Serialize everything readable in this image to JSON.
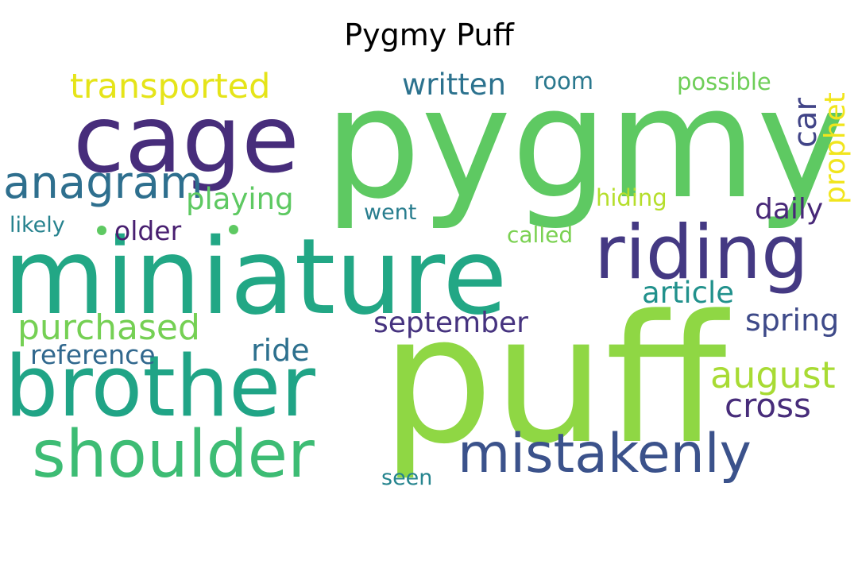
{
  "title": "Pygmy Puff",
  "colors": {
    "purple": "#46327e",
    "darkblue": "#365c8d",
    "steelblue": "#277f8e",
    "teal": "#1fa187",
    "green": "#4ac16d",
    "lightgreen": "#6ccd5a",
    "lime": "#9fda3a",
    "yellow": "#e2e418",
    "indigo": "#3b528b"
  },
  "words": [
    {
      "text": "pygmy",
      "color": "#5ec962"
    },
    {
      "text": "puff",
      "color": "#8fd744"
    },
    {
      "text": "miniature",
      "color": "#22a785"
    },
    {
      "text": "cage",
      "color": "#472d7b"
    },
    {
      "text": "brother",
      "color": "#20a486"
    },
    {
      "text": "riding",
      "color": "#443983"
    },
    {
      "text": "shoulder",
      "color": "#3dbc74"
    },
    {
      "text": "mistakenly",
      "color": "#3b528b"
    },
    {
      "text": "anagram",
      "color": "#2e6f8e"
    },
    {
      "text": "transported",
      "color": "#e5e419"
    },
    {
      "text": "purchased",
      "color": "#75d054"
    },
    {
      "text": "written",
      "color": "#2c728e"
    },
    {
      "text": "room",
      "color": "#2a788e"
    },
    {
      "text": "possible",
      "color": "#6ece58"
    },
    {
      "text": "car",
      "color": "#414487"
    },
    {
      "text": "prophet",
      "color": "#f1e51d"
    },
    {
      "text": "playing",
      "color": "#5ec962"
    },
    {
      "text": "hiding",
      "color": "#b5de2b"
    },
    {
      "text": "daily",
      "color": "#482878"
    },
    {
      "text": "went",
      "color": "#287d8e"
    },
    {
      "text": "likely",
      "color": "#26828e"
    },
    {
      "text": "older",
      "color": "#481f70"
    },
    {
      "text": "called",
      "color": "#7ad151"
    },
    {
      "text": "article",
      "color": "#21918c"
    },
    {
      "text": "september",
      "color": "#46337f"
    },
    {
      "text": "spring",
      "color": "#3e4a89"
    },
    {
      "text": "reference",
      "color": "#31688e"
    },
    {
      "text": "ride",
      "color": "#2d708e"
    },
    {
      "text": "august",
      "color": "#a8db34"
    },
    {
      "text": "cross",
      "color": "#472c7a"
    },
    {
      "text": "seen",
      "color": "#25848e"
    }
  ]
}
